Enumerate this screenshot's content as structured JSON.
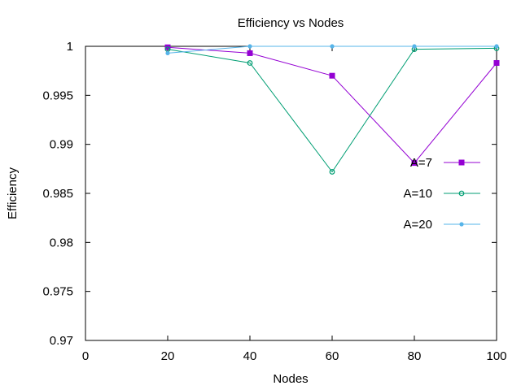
{
  "chart_data": {
    "type": "line",
    "title": "Efficiency vs Nodes",
    "xlabel": "Nodes",
    "ylabel": "Efficiency",
    "xlim": [
      0,
      100
    ],
    "ylim": [
      0.97,
      1
    ],
    "xticks": [
      0,
      20,
      40,
      60,
      80,
      100
    ],
    "xtick_labels": [
      "0",
      "20",
      "40",
      "60",
      "80",
      "100"
    ],
    "yticks": [
      0.97,
      0.975,
      0.98,
      0.985,
      0.99,
      0.995,
      1
    ],
    "ytick_labels": [
      "0.97",
      "0.975",
      "0.98",
      "0.985",
      "0.99",
      "0.995",
      "1"
    ],
    "grid": false,
    "legend_position": "right",
    "x": [
      20,
      40,
      60,
      80,
      100
    ],
    "series": [
      {
        "name": "A=7",
        "color": "#9400d3",
        "marker": "filled-square",
        "values": [
          0.9999,
          0.9993,
          0.997,
          0.9881,
          0.9983
        ]
      },
      {
        "name": "A=10",
        "color": "#009e73",
        "marker": "open-circle",
        "values": [
          0.9997,
          0.9983,
          0.9872,
          0.9997,
          0.9998
        ]
      },
      {
        "name": "A=20",
        "color": "#56b4e9",
        "marker": "filled-circle",
        "values": [
          0.9993,
          1.0,
          1.0,
          1.0,
          1.0
        ]
      }
    ]
  }
}
